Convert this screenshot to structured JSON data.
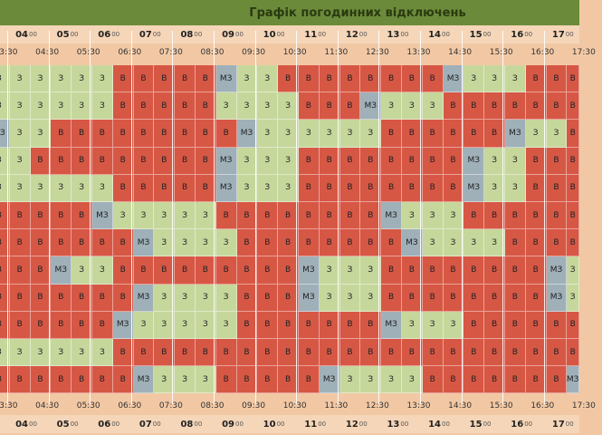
{
  "title": "Графік погодинних відключень",
  "legend_codes": {
    "v": "В",
    "z": "З",
    "m": "МЗ"
  },
  "colors": {
    "v": "#d75745",
    "z": "#c6d79c",
    "m": "#9fb0b9",
    "header": "#6b8b3a"
  },
  "hours": [
    {
      "h": "04",
      "m": "00"
    },
    {
      "h": "05",
      "m": "00"
    },
    {
      "h": "06",
      "m": "00"
    },
    {
      "h": "07",
      "m": "00"
    },
    {
      "h": "08",
      "m": "00"
    },
    {
      "h": "09",
      "m": "00"
    },
    {
      "h": "10",
      "m": "00"
    },
    {
      "h": "11",
      "m": "00"
    },
    {
      "h": "12",
      "m": "00"
    },
    {
      "h": "13",
      "m": "00"
    },
    {
      "h": "14",
      "m": "00"
    },
    {
      "h": "15",
      "m": "00"
    },
    {
      "h": "16",
      "m": "00"
    },
    {
      "h": "17",
      "m": "00"
    }
  ],
  "half_hours": [
    "03:30",
    "04:30",
    "05:30",
    "06:30",
    "07:30",
    "08:30",
    "09:30",
    "10:30",
    "11:30",
    "12:30",
    "13:30",
    "14:30",
    "15:30",
    "16:30",
    "17:30"
  ],
  "rows": [
    "zzzzzzvvvvvmzzvvvvvvvvmzzzvvv",
    "zzzzzzvvvvvzzzzvvvmzzzvvvvvvv",
    "mzzvvvvvvvvvmzzzzzzvvvvvvmzzv",
    "zzvvvvvvvvvmzzzvvvvvvvvmzzvvv",
    "zzzzzzvvvvvmzzzvvvvvvvvmzzvvv",
    "vvvvvmzzzzzvvvvvvvvmzzzvvvvvv",
    "vvvvvvvmzzzzvvvvvvvvmzzzzvvvv",
    "vvvmzzvvvvvvvvvmzzzvvvvvvvvmz",
    "vvvvvvvmzzzzvvvmzzzvvvvvvvvmz",
    "vvvvvvmzzzzzvvvvvvvmzzzvvvvvv",
    "zzzzzzvvvvvvvvvvvvvvvvvvvvvvv",
    "vvvvvvvmzzzvvvvvmzzzzvvvvvvvm"
  ]
}
